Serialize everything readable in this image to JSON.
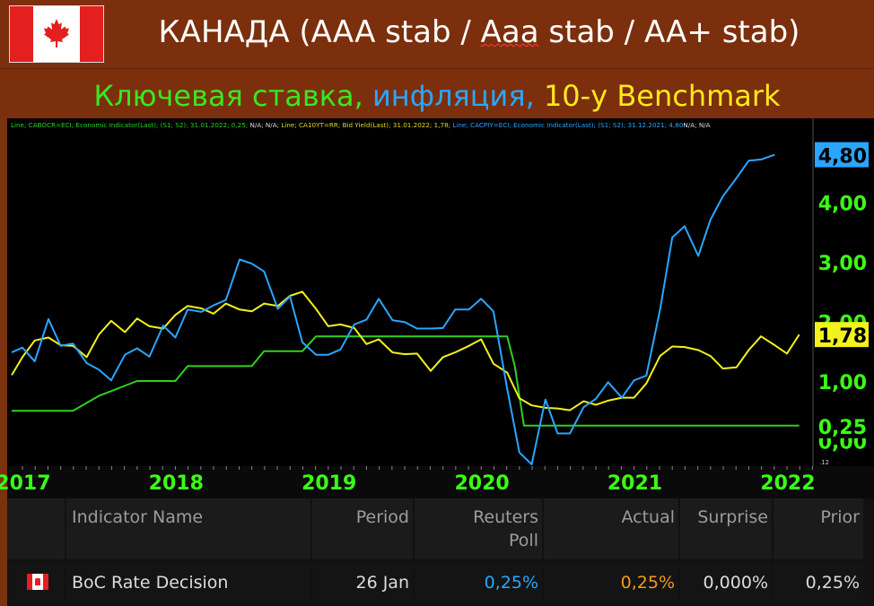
{
  "header": {
    "title_prefix": "КАНАДА (AAA stab / ",
    "title_wavy": "Aaa",
    "title_suffix": " stab / AA+ stab)",
    "subtitle_part1": "Ключевая ставка, ",
    "subtitle_part2": "инфляция, ",
    "subtitle_part3": "10-y Benchmark"
  },
  "legend": {
    "green_text": "Line; CABOCR=ECI; Economic Indicator(Last); (S1; S2); 31.01.2022; 0,25; ",
    "green_na": "N/A; N/A; ",
    "yellow_text": "Line; CA10YT=RR; Bid Yield(Last); 31.01.2022; 1,78; ",
    "blue_text": "Line; CACPIY=ECI; Economic Indicator(Last); (S1; S2); 31.12.2021; 4,80",
    "blue_na": "N/A; N/A"
  },
  "colors": {
    "background": "#7a3210",
    "green": "#2fd21e",
    "yellow": "#f2f21c",
    "blue": "#2aa6ff",
    "axis_green": "#39ff14"
  },
  "chart_data": {
    "type": "line",
    "xlabels": [
      "2017",
      "2018",
      "2019",
      "2020",
      "2021",
      "2022"
    ],
    "x_tick_years": [
      2017,
      2018,
      2019,
      2020,
      2021,
      2022
    ],
    "ylim": [
      -0.4,
      5.2
    ],
    "yticks": [
      0,
      1,
      2,
      3,
      4
    ],
    "ytick_labels": [
      "0,00",
      "1,00",
      "2,00",
      "3,00",
      "4,00"
    ],
    "scale_label": ".12",
    "grid": false,
    "series": [
      {
        "key": "policy",
        "color": "#2fd21e",
        "last_label": "0,25",
        "label_bg": "#000000",
        "label_color": "#39ff14",
        "points": [
          [
            2016.93,
            0.5
          ],
          [
            2017.33,
            0.5
          ],
          [
            2017.5,
            0.75
          ],
          [
            2017.75,
            1.0
          ],
          [
            2018.0,
            1.0
          ],
          [
            2018.08,
            1.25
          ],
          [
            2018.5,
            1.25
          ],
          [
            2018.58,
            1.5
          ],
          [
            2018.83,
            1.5
          ],
          [
            2018.92,
            1.75
          ],
          [
            2020.17,
            1.75
          ],
          [
            2020.22,
            1.25
          ],
          [
            2020.25,
            0.75
          ],
          [
            2020.28,
            0.25
          ],
          [
            2022.08,
            0.25
          ]
        ]
      },
      {
        "key": "bond10y",
        "color": "#f2f21c",
        "last_label": "1,78",
        "label_bg": "#f2f21c",
        "label_color": "#000000",
        "points": [
          [
            2016.93,
            1.1
          ],
          [
            2017.0,
            1.4
          ],
          [
            2017.08,
            1.68
          ],
          [
            2017.17,
            1.73
          ],
          [
            2017.25,
            1.6
          ],
          [
            2017.33,
            1.59
          ],
          [
            2017.42,
            1.4
          ],
          [
            2017.5,
            1.78
          ],
          [
            2017.58,
            2.01
          ],
          [
            2017.67,
            1.82
          ],
          [
            2017.75,
            2.05
          ],
          [
            2017.83,
            1.92
          ],
          [
            2017.92,
            1.88
          ],
          [
            2018.0,
            2.11
          ],
          [
            2018.08,
            2.26
          ],
          [
            2018.17,
            2.22
          ],
          [
            2018.25,
            2.13
          ],
          [
            2018.33,
            2.3
          ],
          [
            2018.42,
            2.2
          ],
          [
            2018.5,
            2.17
          ],
          [
            2018.58,
            2.3
          ],
          [
            2018.67,
            2.26
          ],
          [
            2018.75,
            2.43
          ],
          [
            2018.83,
            2.5
          ],
          [
            2018.92,
            2.21
          ],
          [
            2019.0,
            1.92
          ],
          [
            2019.08,
            1.95
          ],
          [
            2019.17,
            1.89
          ],
          [
            2019.25,
            1.62
          ],
          [
            2019.33,
            1.7
          ],
          [
            2019.42,
            1.48
          ],
          [
            2019.5,
            1.45
          ],
          [
            2019.58,
            1.46
          ],
          [
            2019.67,
            1.17
          ],
          [
            2019.75,
            1.4
          ],
          [
            2019.83,
            1.48
          ],
          [
            2019.92,
            1.59
          ],
          [
            2020.0,
            1.7
          ],
          [
            2020.08,
            1.29
          ],
          [
            2020.17,
            1.14
          ],
          [
            2020.25,
            0.71
          ],
          [
            2020.33,
            0.59
          ],
          [
            2020.42,
            0.55
          ],
          [
            2020.5,
            0.54
          ],
          [
            2020.58,
            0.51
          ],
          [
            2020.67,
            0.66
          ],
          [
            2020.75,
            0.6
          ],
          [
            2020.83,
            0.67
          ],
          [
            2020.92,
            0.72
          ],
          [
            2021.0,
            0.72
          ],
          [
            2021.08,
            0.96
          ],
          [
            2021.17,
            1.42
          ],
          [
            2021.25,
            1.58
          ],
          [
            2021.33,
            1.57
          ],
          [
            2021.42,
            1.52
          ],
          [
            2021.5,
            1.42
          ],
          [
            2021.58,
            1.21
          ],
          [
            2021.67,
            1.23
          ],
          [
            2021.75,
            1.52
          ],
          [
            2021.83,
            1.75
          ],
          [
            2021.92,
            1.6
          ],
          [
            2022.0,
            1.46
          ],
          [
            2022.08,
            1.78
          ]
        ]
      },
      {
        "key": "cpi",
        "color": "#2aa6ff",
        "last_label": "4,80",
        "label_bg": "#2aa6ff",
        "label_color": "#000000",
        "points": [
          [
            2016.93,
            1.48
          ],
          [
            2017.0,
            1.56
          ],
          [
            2017.08,
            1.33
          ],
          [
            2017.17,
            2.04
          ],
          [
            2017.25,
            1.59
          ],
          [
            2017.33,
            1.63
          ],
          [
            2017.42,
            1.3
          ],
          [
            2017.5,
            1.19
          ],
          [
            2017.58,
            1.01
          ],
          [
            2017.67,
            1.44
          ],
          [
            2017.75,
            1.55
          ],
          [
            2017.83,
            1.41
          ],
          [
            2017.92,
            1.93
          ],
          [
            2018.0,
            1.73
          ],
          [
            2018.08,
            2.2
          ],
          [
            2018.17,
            2.16
          ],
          [
            2018.25,
            2.27
          ],
          [
            2018.33,
            2.36
          ],
          [
            2018.42,
            3.04
          ],
          [
            2018.5,
            2.97
          ],
          [
            2018.58,
            2.84
          ],
          [
            2018.67,
            2.21
          ],
          [
            2018.75,
            2.42
          ],
          [
            2018.83,
            1.65
          ],
          [
            2018.92,
            1.44
          ],
          [
            2019.0,
            1.44
          ],
          [
            2019.08,
            1.53
          ],
          [
            2019.17,
            1.95
          ],
          [
            2019.25,
            2.03
          ],
          [
            2019.33,
            2.38
          ],
          [
            2019.42,
            2.02
          ],
          [
            2019.5,
            1.99
          ],
          [
            2019.58,
            1.88
          ],
          [
            2019.67,
            1.88
          ],
          [
            2019.75,
            1.89
          ],
          [
            2019.83,
            2.2
          ],
          [
            2019.92,
            2.2
          ],
          [
            2020.0,
            2.38
          ],
          [
            2020.08,
            2.17
          ],
          [
            2020.17,
            0.87
          ],
          [
            2020.25,
            -0.2
          ],
          [
            2020.33,
            -0.4
          ],
          [
            2020.42,
            0.69
          ],
          [
            2020.5,
            0.12
          ],
          [
            2020.58,
            0.12
          ],
          [
            2020.67,
            0.56
          ],
          [
            2020.75,
            0.7
          ],
          [
            2020.83,
            0.98
          ],
          [
            2020.92,
            0.72
          ],
          [
            2021.0,
            1.01
          ],
          [
            2021.08,
            1.09
          ],
          [
            2021.17,
            2.2
          ],
          [
            2021.25,
            3.41
          ],
          [
            2021.33,
            3.6
          ],
          [
            2021.42,
            3.1
          ],
          [
            2021.5,
            3.71
          ],
          [
            2021.58,
            4.1
          ],
          [
            2021.67,
            4.41
          ],
          [
            2021.75,
            4.7
          ],
          [
            2021.83,
            4.72
          ],
          [
            2021.92,
            4.8
          ]
        ]
      }
    ]
  },
  "table": {
    "headers": {
      "indicator": "Indicator Name",
      "period": "Period",
      "reuters_1": "Reuters",
      "reuters_2": "Poll",
      "actual": "Actual",
      "surprise": "Surprise",
      "prior": "Prior"
    },
    "row": {
      "indicator": "BoC Rate Decision",
      "period": "26 Jan",
      "reuters": "0,25%",
      "actual": "0,25%",
      "surprise": "0,000%",
      "prior": "0,25%"
    },
    "colors": {
      "reuters": "#2aa6ff",
      "actual": "#f29a20",
      "text": "#dcdcdc"
    }
  }
}
